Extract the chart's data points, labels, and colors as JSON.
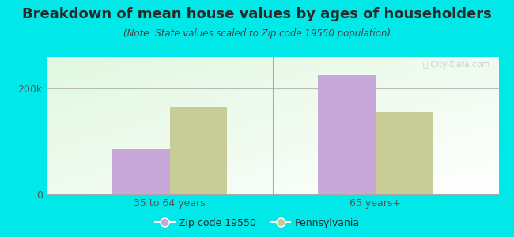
{
  "title": "Breakdown of mean house values by ages of householders",
  "subtitle": "(Note: State values scaled to Zip code 19550 population)",
  "categories": [
    "35 to 64 years",
    "65 years+"
  ],
  "zip_values": [
    85000,
    225000
  ],
  "state_values": [
    165000,
    155000
  ],
  "zip_color": "#c8a8d8",
  "state_color": "#c8cc96",
  "background_color": "#00e8e8",
  "ytick_labels": [
    "0",
    "200k"
  ],
  "ytick_values": [
    0,
    200000
  ],
  "ylim": [
    0,
    260000
  ],
  "legend_zip_label": "Zip code 19550",
  "legend_state_label": "Pennsylvania",
  "bar_width": 0.28,
  "title_fontsize": 13,
  "subtitle_fontsize": 8.5,
  "axis_fontsize": 9,
  "legend_fontsize": 9,
  "text_color": "#2a2a2a",
  "subtitle_color": "#444444",
  "tick_color": "#555555"
}
